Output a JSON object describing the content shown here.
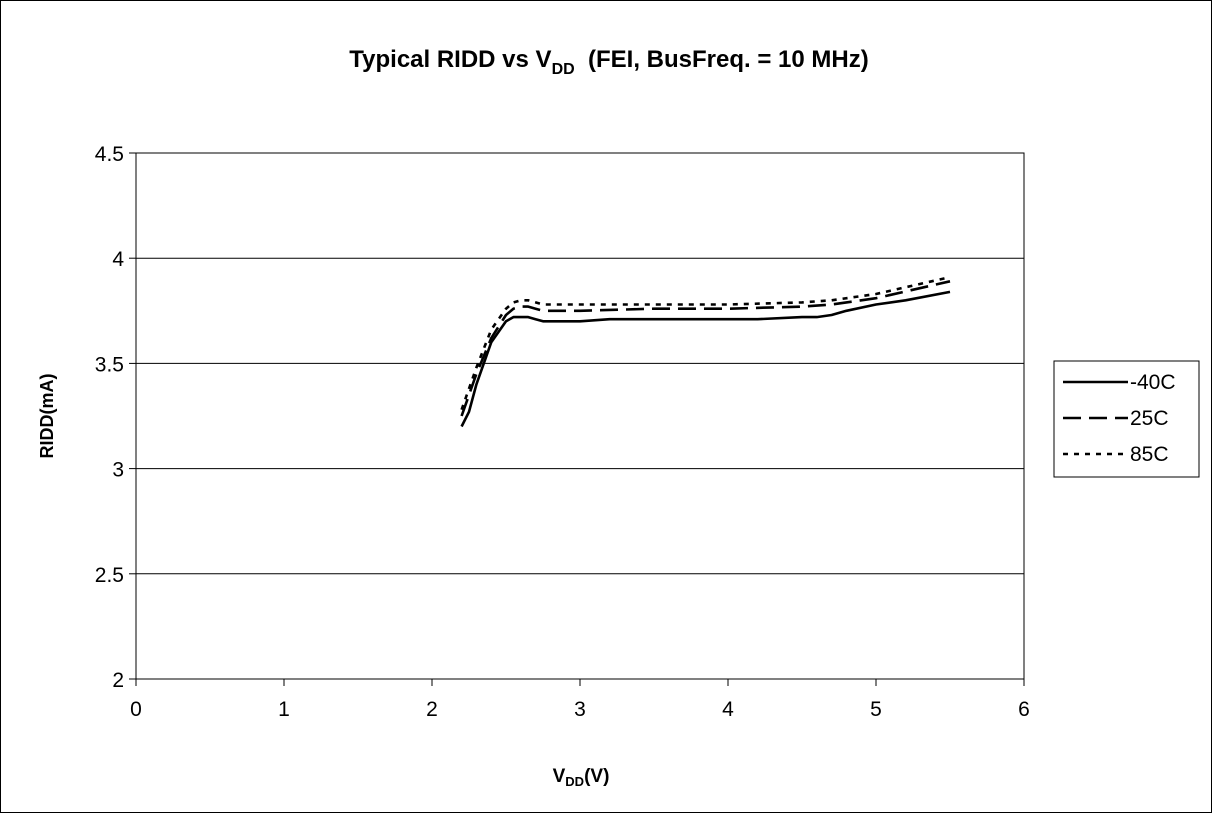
{
  "chart_data": {
    "type": "line",
    "title": {
      "prefix": "Typical RIDD vs V",
      "subscript": "DD",
      "suffix": "  (FEI, BusFreq. = 10 MHz)"
    },
    "xlabel": {
      "prefix": "V",
      "subscript": "DD",
      "suffix": "(V)"
    },
    "ylabel": "RIDD(mA)",
    "xlim": [
      0,
      6
    ],
    "ylim": [
      2,
      4.5
    ],
    "x_ticks": [
      "0",
      "1",
      "2",
      "3",
      "4",
      "5",
      "6"
    ],
    "y_ticks": [
      "2",
      "2.5",
      "3",
      "3.5",
      "4",
      "4.5"
    ],
    "grid": "horizontal",
    "legend_position": "right",
    "series": [
      {
        "name": "-40C",
        "dash": "solid",
        "x": [
          2.2,
          2.25,
          2.3,
          2.4,
          2.5,
          2.55,
          2.6,
          2.65,
          2.7,
          2.75,
          2.8,
          3.0,
          3.2,
          3.5,
          4.0,
          4.2,
          4.5,
          4.6,
          4.7,
          4.8,
          5.0,
          5.2,
          5.5
        ],
        "values": [
          3.2,
          3.27,
          3.4,
          3.6,
          3.7,
          3.72,
          3.72,
          3.72,
          3.71,
          3.7,
          3.7,
          3.7,
          3.71,
          3.71,
          3.71,
          3.71,
          3.72,
          3.72,
          3.73,
          3.75,
          3.78,
          3.8,
          3.84
        ]
      },
      {
        "name": "25C",
        "dash": "dash",
        "x": [
          2.2,
          2.3,
          2.4,
          2.5,
          2.55,
          2.6,
          2.65,
          2.7,
          2.75,
          2.8,
          3.0,
          3.5,
          4.0,
          4.5,
          4.7,
          5.0,
          5.5
        ],
        "values": [
          3.25,
          3.45,
          3.62,
          3.73,
          3.76,
          3.77,
          3.77,
          3.76,
          3.75,
          3.75,
          3.75,
          3.76,
          3.76,
          3.77,
          3.78,
          3.81,
          3.89
        ]
      },
      {
        "name": "85C",
        "dash": "dot",
        "x": [
          2.2,
          2.3,
          2.4,
          2.5,
          2.55,
          2.6,
          2.65,
          2.7,
          2.75,
          2.8,
          3.0,
          3.5,
          4.0,
          4.5,
          4.7,
          5.0,
          5.5
        ],
        "values": [
          3.28,
          3.48,
          3.66,
          3.76,
          3.79,
          3.8,
          3.8,
          3.79,
          3.78,
          3.78,
          3.78,
          3.78,
          3.78,
          3.79,
          3.8,
          3.83,
          3.91
        ]
      }
    ]
  }
}
